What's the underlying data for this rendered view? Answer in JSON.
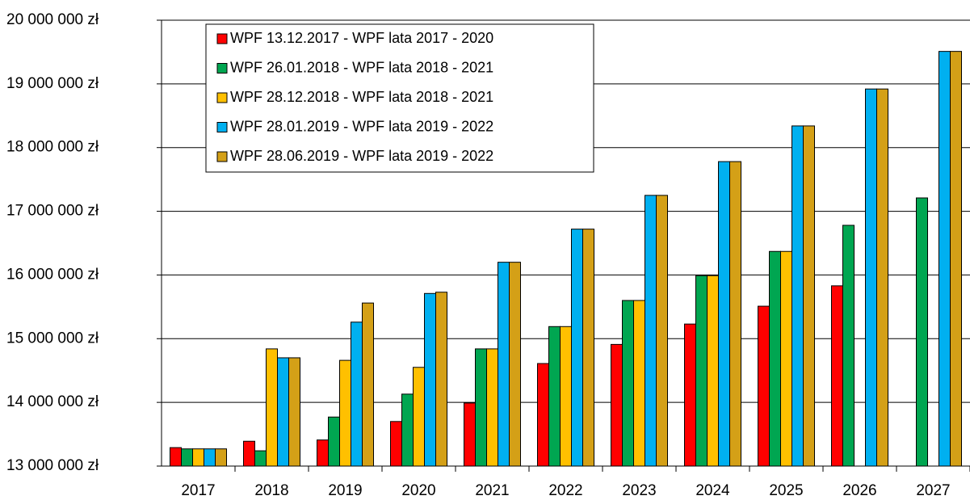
{
  "chart_data": {
    "type": "bar",
    "categories": [
      "2017",
      "2018",
      "2019",
      "2020",
      "2021",
      "2022",
      "2023",
      "2024",
      "2025",
      "2026",
      "2027"
    ],
    "series": [
      {
        "name": "WPF 13.12.2017 - WPF lata 2017 - 2020",
        "color": "#ff0000",
        "values": [
          13290000,
          13390000,
          13410000,
          13700000,
          13990000,
          14610000,
          14910000,
          15230000,
          15510000,
          15830000,
          null
        ]
      },
      {
        "name": "WPF 26.01.2018 - WPF lata 2018 - 2021",
        "color": "#00a651",
        "values": [
          13270000,
          13240000,
          13770000,
          14130000,
          14840000,
          15190000,
          15600000,
          15990000,
          16370000,
          16780000,
          17210000
        ]
      },
      {
        "name": "WPF 28.12.2018 - WPF lata 2018 - 2021",
        "color": "#ffc000",
        "values": [
          13270000,
          14840000,
          14660000,
          14550000,
          14840000,
          15190000,
          15600000,
          15990000,
          16370000,
          null,
          null
        ]
      },
      {
        "name": "WPF 28.01.2019 - WPF lata 2019 - 2022",
        "color": "#00b0f0",
        "values": [
          13270000,
          14700000,
          15260000,
          15710000,
          16200000,
          16720000,
          17250000,
          17780000,
          18340000,
          18920000,
          19510000
        ]
      },
      {
        "name": "WPF 28.06.2019 - WPF lata 2019 - 2022",
        "color": "#d4a017",
        "values": [
          13270000,
          14700000,
          15560000,
          15730000,
          16200000,
          16720000,
          17250000,
          17780000,
          18340000,
          18920000,
          19510000
        ]
      }
    ],
    "ylim": [
      13000000,
      20000000
    ],
    "yticks": [
      {
        "value": 13000000,
        "label": "13 000 000 zł"
      },
      {
        "value": 14000000,
        "label": "14 000 000 zł"
      },
      {
        "value": 15000000,
        "label": "15 000 000 zł"
      },
      {
        "value": 16000000,
        "label": "16 000 000 zł"
      },
      {
        "value": 17000000,
        "label": "17 000 000 zł"
      },
      {
        "value": 18000000,
        "label": "18 000 000 zł"
      },
      {
        "value": 19000000,
        "label": "19 000 000 zł"
      },
      {
        "value": 20000000,
        "label": "20 000 000 zł"
      }
    ],
    "grid": true,
    "legend": "top-left"
  }
}
